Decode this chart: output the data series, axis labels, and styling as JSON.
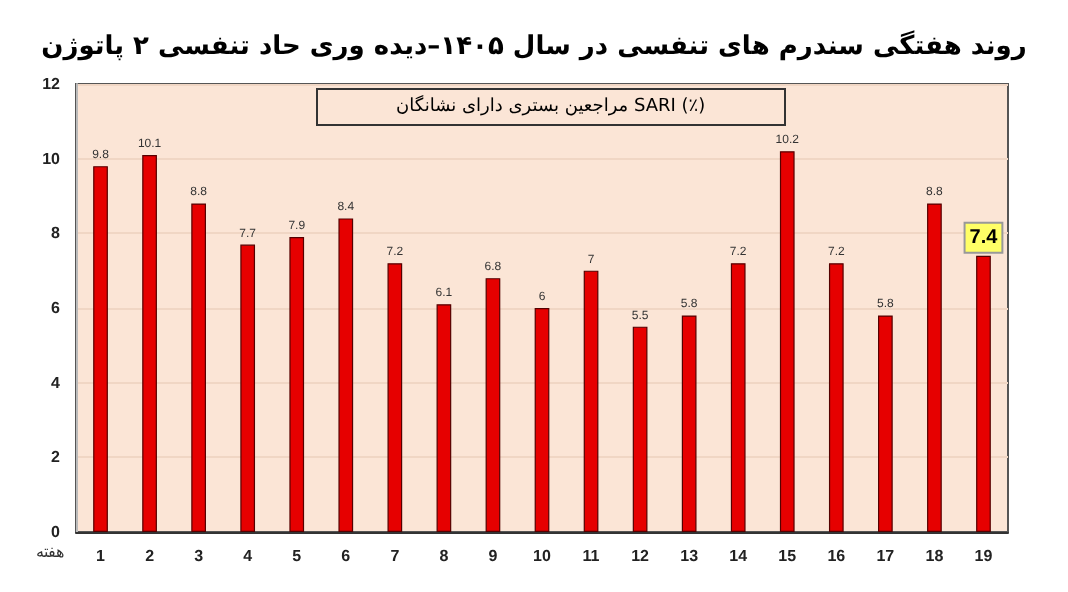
{
  "chart_data": {
    "type": "bar",
    "title": "روند هفتگی سندرم های تنفسی در سال ۱۴۰۵–دیده وری حاد تنفسی ۲ پاتوژن",
    "subtitle": "مراجعین بستری دارای نشانگان SARI (٪)",
    "xlabel": "هفته",
    "categories": [
      "1",
      "2",
      "3",
      "4",
      "5",
      "6",
      "7",
      "8",
      "9",
      "10",
      "11",
      "12",
      "13",
      "14",
      "15",
      "16",
      "17",
      "18",
      "19"
    ],
    "values": [
      9.8,
      10.1,
      8.8,
      7.7,
      7.9,
      8.4,
      7.2,
      6.1,
      6.8,
      6,
      7,
      5.5,
      5.8,
      7.2,
      10.2,
      7.2,
      5.8,
      8.8,
      7.4
    ],
    "color": "#e60000",
    "ylim": [
      0,
      12
    ],
    "yticks": [
      0,
      2,
      4,
      6,
      8,
      10,
      12
    ],
    "grid": "y",
    "data_labels": true
  }
}
